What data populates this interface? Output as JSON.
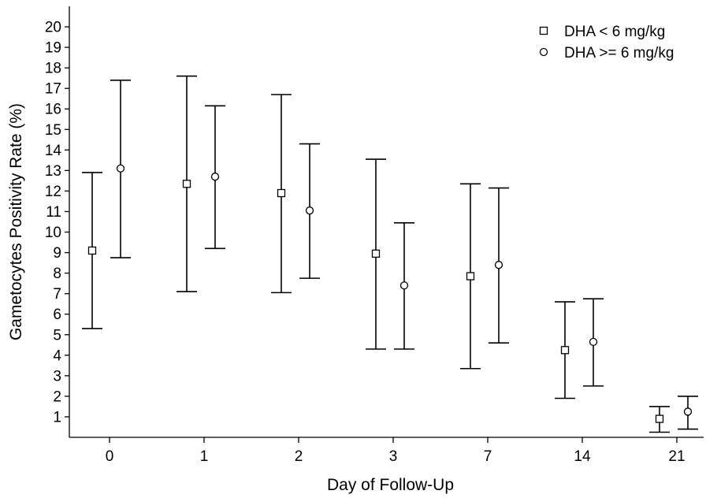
{
  "chart_data": {
    "type": "scatter",
    "xlabel": "Day of Follow-Up",
    "ylabel": "Gametocytes Positivity Rate (%)",
    "categories": [
      "0",
      "1",
      "2",
      "3",
      "7",
      "14",
      "21"
    ],
    "ylim": [
      0,
      21
    ],
    "yticks": [
      1,
      2,
      3,
      4,
      5,
      6,
      7,
      8,
      9,
      10,
      11,
      12,
      13,
      14,
      15,
      16,
      17,
      18,
      19,
      20
    ],
    "grid": false,
    "legend_position": "top-right",
    "series": [
      {
        "name": "DHA < 6 mg/kg",
        "marker": "square",
        "values": [
          9.1,
          12.35,
          11.9,
          8.95,
          7.85,
          4.25,
          0.9
        ],
        "lower": [
          5.3,
          7.1,
          7.05,
          4.3,
          3.35,
          1.9,
          0.25
        ],
        "upper": [
          12.9,
          17.6,
          16.7,
          13.55,
          12.35,
          6.6,
          1.5
        ]
      },
      {
        "name": "DHA >= 6 mg/kg",
        "marker": "circle",
        "values": [
          13.1,
          12.7,
          11.05,
          7.4,
          8.4,
          4.65,
          1.25
        ],
        "lower": [
          8.75,
          9.2,
          7.75,
          4.3,
          4.6,
          2.5,
          0.4
        ],
        "upper": [
          17.4,
          16.15,
          14.3,
          10.45,
          12.15,
          6.75,
          2.0
        ]
      }
    ]
  }
}
